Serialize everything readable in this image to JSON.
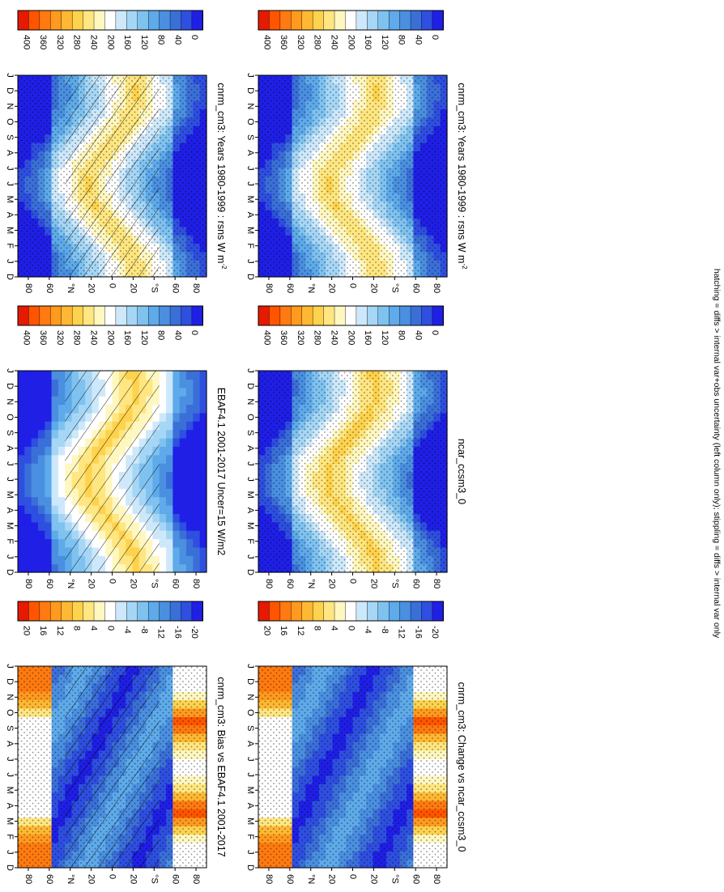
{
  "figure": {
    "footnote": "hatching = diffs > internal var+obs uncertainty (left column only); stippling = diffs > internal var only"
  },
  "palettes": {
    "sequential": [
      "#1f1fe6",
      "#2e4fe0",
      "#3b6fd8",
      "#4a8fe0",
      "#5eaaea",
      "#7fc2f0",
      "#a6d6f5",
      "#cde8fa",
      "#ffffff",
      "#fff7c0",
      "#ffe680",
      "#ffd24d",
      "#ffb833",
      "#ff9a1f",
      "#ff7a10",
      "#ff5500",
      "#e61a00"
    ],
    "diverging": [
      "#1f1fe6",
      "#2e4fe0",
      "#3b6fd8",
      "#4a8fe0",
      "#5eaaea",
      "#7fc2f0",
      "#a6d6f5",
      "#cde8fa",
      "#ffffff",
      "#fff7c0",
      "#ffe680",
      "#ffd24d",
      "#ffb833",
      "#ff9a1f",
      "#ff7a10",
      "#ff5500",
      "#e61a00"
    ]
  },
  "chart_data": [
    {
      "type": "heatmap",
      "id": "p1",
      "title": "cnrm_cm3: Years 1980-1999 : rsns W m",
      "title_sup": "-2",
      "x_ticks": [
        "D",
        "J",
        "F",
        "M",
        "A",
        "M",
        "J",
        "J",
        "A",
        "S",
        "O",
        "N",
        "D",
        "J"
      ],
      "y_ticks": [
        "80",
        "60",
        "°N",
        "20",
        "0",
        "20",
        "°S",
        "60",
        "80"
      ],
      "colorbar_labels": [
        "400",
        "360",
        "320",
        "280",
        "240",
        "200",
        "160",
        "120",
        "80",
        "40",
        "0"
      ],
      "range": [
        0,
        400
      ],
      "kind": "abs",
      "hatching": true,
      "stippling": true
    },
    {
      "type": "heatmap",
      "id": "p2",
      "title": "cnrm_cm3: Years 1980-1999 : rsns W m",
      "title_sup": "-2",
      "x_ticks": [
        "D",
        "J",
        "F",
        "M",
        "A",
        "M",
        "J",
        "J",
        "A",
        "S",
        "O",
        "N",
        "D",
        "J"
      ],
      "y_ticks": [
        "80",
        "60",
        "°N",
        "20",
        "0",
        "20",
        "°S",
        "60",
        "80"
      ],
      "colorbar_labels": [
        "400",
        "360",
        "320",
        "280",
        "240",
        "200",
        "160",
        "120",
        "80",
        "40",
        "0"
      ],
      "range": [
        0,
        400
      ],
      "kind": "abs",
      "hatching": false,
      "stippling": true
    },
    {
      "type": "heatmap",
      "id": "p3",
      "title": "EBAF4.1 2001-2017 Uncer=15 W/m2",
      "title_sup": "",
      "x_ticks": [
        "D",
        "J",
        "F",
        "M",
        "A",
        "M",
        "J",
        "J",
        "A",
        "S",
        "O",
        "N",
        "D",
        "J"
      ],
      "y_ticks": [
        "80",
        "60",
        "°N",
        "20",
        "0",
        "20",
        "°S",
        "60",
        "80"
      ],
      "colorbar_labels": [
        "400",
        "360",
        "320",
        "280",
        "240",
        "200",
        "160",
        "120",
        "80",
        "40",
        "0"
      ],
      "range": [
        0,
        400
      ],
      "kind": "abs2",
      "hatching": true,
      "stippling": false
    },
    {
      "type": "heatmap",
      "id": "p4",
      "title": "ncar_ccsm3_0",
      "title_sup": "",
      "x_ticks": [
        "D",
        "J",
        "F",
        "M",
        "A",
        "M",
        "J",
        "J",
        "A",
        "S",
        "O",
        "N",
        "D",
        "J"
      ],
      "y_ticks": [
        "80",
        "60",
        "°N",
        "20",
        "0",
        "20",
        "°S",
        "60",
        "80"
      ],
      "colorbar_labels": [
        "400",
        "360",
        "320",
        "280",
        "240",
        "200",
        "160",
        "120",
        "80",
        "40",
        "0"
      ],
      "range": [
        0,
        400
      ],
      "kind": "abs2",
      "hatching": false,
      "stippling": true
    },
    {
      "type": "heatmap",
      "id": "p5",
      "title": "cnrm_cm3: Bias vs EBAF4.1 2001-2017",
      "title_sup": "",
      "x_ticks": [
        "D",
        "J",
        "F",
        "M",
        "A",
        "M",
        "J",
        "J",
        "A",
        "S",
        "O",
        "N",
        "D",
        "J"
      ],
      "y_ticks": [
        "80",
        "60",
        "°N",
        "20",
        "0",
        "20",
        "°S",
        "60",
        "80"
      ],
      "colorbar_labels": [
        "20",
        "16",
        "12",
        "8",
        "4",
        "0",
        "-4",
        "-8",
        "-12",
        "-16",
        "-20"
      ],
      "range": [
        -20,
        20
      ],
      "kind": "bias",
      "hatching": true,
      "stippling": true
    },
    {
      "type": "heatmap",
      "id": "p6",
      "title": "cnrm_cm3: Change vs ncar_ccsm3_0",
      "title_sup": "",
      "x_ticks": [
        "D",
        "J",
        "F",
        "M",
        "A",
        "M",
        "J",
        "J",
        "A",
        "S",
        "O",
        "N",
        "D",
        "J"
      ],
      "y_ticks": [
        "80",
        "60",
        "°N",
        "20",
        "0",
        "20",
        "°S",
        "60",
        "80"
      ],
      "colorbar_labels": [
        "20",
        "16",
        "12",
        "8",
        "4",
        "0",
        "-4",
        "-8",
        "-12",
        "-16",
        "-20"
      ],
      "range": [
        -20,
        20
      ],
      "kind": "change",
      "hatching": false,
      "stippling": true
    }
  ]
}
